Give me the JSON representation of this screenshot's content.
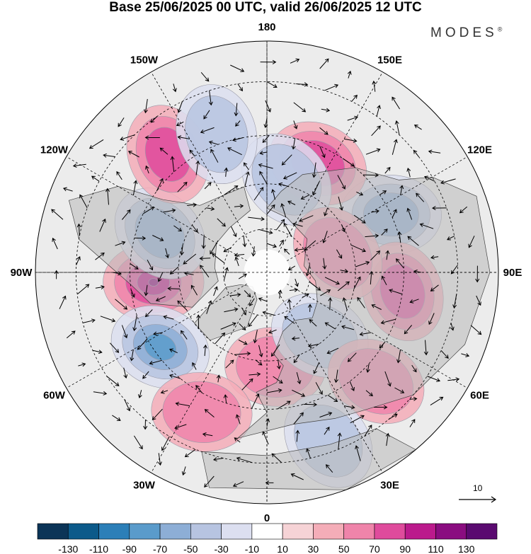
{
  "title": "Base 25/06/2025 00 UTC, valid 26/06/2025 12 UTC",
  "logo": {
    "text": "MODES",
    "mark": "®"
  },
  "map": {
    "projection": "north-polar-stereographic",
    "longitude_labels": [
      {
        "lon": 180,
        "text": "180"
      },
      {
        "lon": 150,
        "text": "150E"
      },
      {
        "lon": 120,
        "text": "120E"
      },
      {
        "lon": 90,
        "text": "90E"
      },
      {
        "lon": 60,
        "text": "60E"
      },
      {
        "lon": 30,
        "text": "30E"
      },
      {
        "lon": 0,
        "text": "0"
      },
      {
        "lon": -30,
        "text": "30W"
      },
      {
        "lon": -60,
        "text": "60W"
      },
      {
        "lon": -90,
        "text": "90W"
      },
      {
        "lon": -120,
        "text": "120W"
      },
      {
        "lon": -150,
        "text": "150W"
      }
    ],
    "anomaly_centers": [
      {
        "sign": "positive",
        "level": 90,
        "lon": -85,
        "lat": 52
      },
      {
        "sign": "negative",
        "level": -70,
        "lon": -55,
        "lat": 47
      },
      {
        "sign": "negative",
        "level": -50,
        "lon": -110,
        "lat": 52
      },
      {
        "sign": "positive",
        "level": 50,
        "lon": -140,
        "lat": 40
      },
      {
        "sign": "negative",
        "level": -50,
        "lon": 115,
        "lat": 45
      },
      {
        "sign": "positive",
        "level": 50,
        "lon": 155,
        "lat": 50
      },
      {
        "sign": "negative",
        "level": -30,
        "lon": 168,
        "lat": 58
      },
      {
        "sign": "positive",
        "level": 50,
        "lon": 82,
        "lat": 45
      },
      {
        "sign": "positive",
        "level": 30,
        "lon": 5,
        "lat": 58
      },
      {
        "sign": "negative",
        "level": -30,
        "lon": 40,
        "lat": 62
      },
      {
        "sign": "positive",
        "level": 30,
        "lon": 105,
        "lat": 65
      },
      {
        "sign": "negative",
        "level": -30,
        "lon": -160,
        "lat": 42
      },
      {
        "sign": "positive",
        "level": 30,
        "lon": -25,
        "lat": 40
      },
      {
        "sign": "positive",
        "level": 30,
        "lon": 45,
        "lat": 40
      },
      {
        "sign": "negative",
        "level": -30,
        "lon": 20,
        "lat": 33
      }
    ],
    "reference_vector": {
      "label": "10"
    }
  },
  "colorbar": {
    "labels": [
      "-130",
      "-110",
      "-90",
      "-70",
      "-50",
      "-30",
      "-10",
      "10",
      "30",
      "50",
      "70",
      "90",
      "110",
      "130"
    ],
    "colors": [
      "#0b3457",
      "#0c5a8a",
      "#2c7fb8",
      "#5a9bcb",
      "#8daed6",
      "#b7c4e1",
      "#dcdff0",
      "#ffffff",
      "#f6d3d6",
      "#f4adb8",
      "#ef84aa",
      "#df4b9c",
      "#bb1a8c",
      "#8a0d80",
      "#5a0a70"
    ]
  },
  "colors": {
    "land": "#b9b9b9",
    "ocean": "#ffffff",
    "grid": "#000000"
  }
}
